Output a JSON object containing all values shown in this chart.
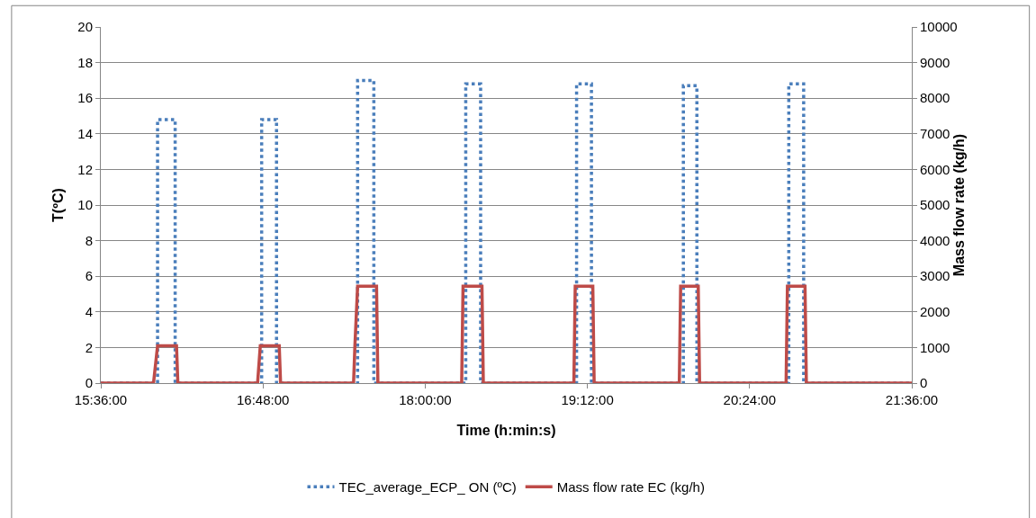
{
  "chart_data": {
    "type": "line",
    "xlabel": "Time (h:min:s)",
    "ylabel": "T(ºC)",
    "y2label": "Mass flow rate (kg/h)",
    "xlim": [
      15.6,
      21.6
    ],
    "xticks": [
      {
        "value": 15.6,
        "label": "15:36:00"
      },
      {
        "value": 16.8,
        "label": "16:48:00"
      },
      {
        "value": 18,
        "label": "18:00:00"
      },
      {
        "value": 19.2,
        "label": "19:12:00"
      },
      {
        "value": 20.4,
        "label": "20:24:00"
      },
      {
        "value": 21.6,
        "label": "21:36:00"
      }
    ],
    "ylim": [
      0,
      20
    ],
    "yticks": [
      0,
      2,
      4,
      6,
      8,
      10,
      12,
      14,
      16,
      18,
      20
    ],
    "y2lim": [
      0,
      10000
    ],
    "y2ticks": [
      0,
      1000,
      2000,
      3000,
      4000,
      5000,
      6000,
      7000,
      8000,
      9000,
      10000
    ],
    "grid": "y",
    "legend": "bottom",
    "marker": "none",
    "series": [
      {
        "name": "TEC_average_ECP_ ON (ºC)",
        "color": "#4a7ebb",
        "line_style": "dotted",
        "x": [
          15.6,
          16.02,
          16.02,
          16.15,
          16.15,
          16.79,
          16.79,
          16.9,
          16.9,
          17.5,
          17.5,
          17.62,
          17.62,
          18.3,
          18.3,
          18.41,
          18.41,
          19.12,
          19.12,
          19.23,
          19.23,
          19.91,
          19.91,
          20.01,
          20.01,
          20.69,
          20.69,
          20.8,
          20.8,
          21.6
        ],
        "values": [
          0,
          0,
          14.8,
          14.8,
          0,
          0,
          14.8,
          14.8,
          0,
          0,
          17,
          17,
          0,
          0,
          16.8,
          16.8,
          0,
          0,
          16.8,
          16.8,
          0,
          0,
          16.7,
          16.7,
          0,
          0,
          16.8,
          16.8,
          0,
          0
        ]
      },
      {
        "name": "Mass flow rate EC (kg/h)",
        "color": "#be4b48",
        "line_style": "solid",
        "axis": "y2",
        "x": [
          15.6,
          15.99,
          16.02,
          16.16,
          16.17,
          16.76,
          16.78,
          16.92,
          16.93,
          17.47,
          17.48,
          17.5,
          17.64,
          17.65,
          18.27,
          18.28,
          18.42,
          18.43,
          19.1,
          19.11,
          19.24,
          19.25,
          19.88,
          19.89,
          20.02,
          20.03,
          20.67,
          20.68,
          20.81,
          20.82,
          21.6
        ],
        "values": [
          0,
          0,
          1050,
          1050,
          0,
          0,
          1050,
          1050,
          0,
          0,
          1050,
          2720,
          2720,
          0,
          0,
          2720,
          2720,
          0,
          0,
          2720,
          2720,
          0,
          0,
          2720,
          2720,
          0,
          0,
          2720,
          2720,
          0,
          0
        ]
      }
    ]
  }
}
